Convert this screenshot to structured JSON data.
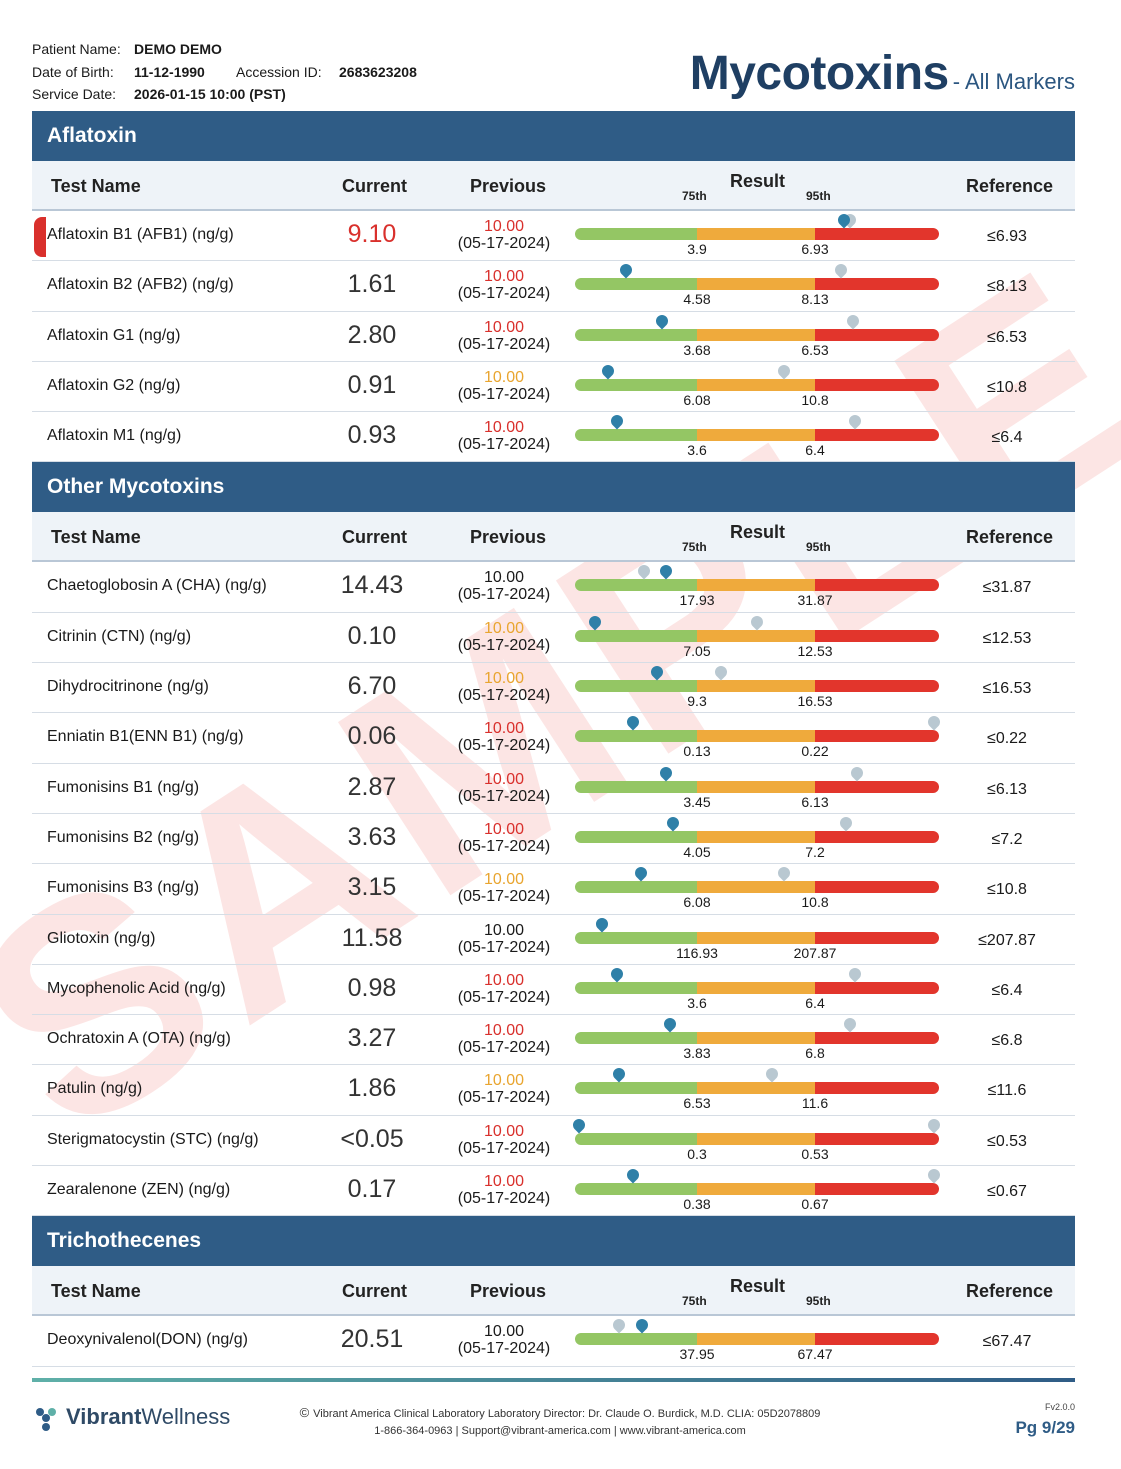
{
  "patient": {
    "name_label": "Patient Name:",
    "name": "DEMO DEMO",
    "dob_label": "Date of Birth:",
    "dob": "11-12-1990",
    "acc_label": "Accession ID:",
    "acc": "2683623208",
    "svc_label": "Service Date:",
    "svc": "2026-01-15 10:00 (PST)"
  },
  "title": {
    "main": "Mycotoxins",
    "sub": "- All Markers"
  },
  "columns": {
    "name": "Test Name",
    "current": "Current",
    "previous": "Previous",
    "result": "Result",
    "p75": "75th",
    "p95": "95th",
    "reference": "Reference"
  },
  "sections": [
    {
      "title": "Aflatoxin",
      "rows": [
        {
          "name": "Aflatoxin B1 (AFB1) (ng/g)",
          "current": "9.10",
          "prev": "10.00",
          "prev_date": "(05-17-2024)",
          "t75": "3.9",
          "t95": "6.93",
          "ref": "≤6.93",
          "cur_pos": 0.74,
          "prev_pos": 0.755,
          "flag": true,
          "prev_level": "high"
        },
        {
          "name": "Aflatoxin B2 (AFB2) (ng/g)",
          "current": "1.61",
          "prev": "10.00",
          "prev_date": "(05-17-2024)",
          "t75": "4.58",
          "t95": "8.13",
          "ref": "≤8.13",
          "cur_pos": 0.14,
          "prev_pos": 0.73,
          "prev_level": "high"
        },
        {
          "name": "Aflatoxin G1 (ng/g)",
          "current": "2.80",
          "prev": "10.00",
          "prev_date": "(05-17-2024)",
          "t75": "3.68",
          "t95": "6.53",
          "ref": "≤6.53",
          "cur_pos": 0.24,
          "prev_pos": 0.765,
          "prev_level": "high"
        },
        {
          "name": "Aflatoxin G2 (ng/g)",
          "current": "0.91",
          "prev": "10.00",
          "prev_date": "(05-17-2024)",
          "t75": "6.08",
          "t95": "10.8",
          "ref": "≤10.8",
          "cur_pos": 0.09,
          "prev_pos": 0.575,
          "prev_level": "mid"
        },
        {
          "name": "Aflatoxin M1 (ng/g)",
          "current": "0.93",
          "prev": "10.00",
          "prev_date": "(05-17-2024)",
          "t75": "3.6",
          "t95": "6.4",
          "ref": "≤6.4",
          "cur_pos": 0.115,
          "prev_pos": 0.77,
          "prev_level": "high"
        }
      ]
    },
    {
      "title": "Other Mycotoxins",
      "rows": [
        {
          "name": "Chaetoglobosin A (CHA) (ng/g)",
          "current": "14.43",
          "prev": "10.00",
          "prev_date": "(05-17-2024)",
          "t75": "17.93",
          "t95": "31.87",
          "ref": "≤31.87",
          "cur_pos": 0.25,
          "prev_pos": 0.19,
          "prev_level": "normal"
        },
        {
          "name": "Citrinin (CTN) (ng/g)",
          "current": "0.10",
          "prev": "10.00",
          "prev_date": "(05-17-2024)",
          "t75": "7.05",
          "t95": "12.53",
          "ref": "≤12.53",
          "cur_pos": 0.055,
          "prev_pos": 0.5,
          "prev_level": "mid"
        },
        {
          "name": "Dihydrocitrinone (ng/g)",
          "current": "6.70",
          "prev": "10.00",
          "prev_date": "(05-17-2024)",
          "t75": "9.3",
          "t95": "16.53",
          "ref": "≤16.53",
          "cur_pos": 0.225,
          "prev_pos": 0.4,
          "prev_level": "mid"
        },
        {
          "name": "Enniatin B1(ENN B1) (ng/g)",
          "current": "0.06",
          "prev": "10.00",
          "prev_date": "(05-17-2024)",
          "t75": "0.13",
          "t95": "0.22",
          "ref": "≤0.22",
          "cur_pos": 0.16,
          "prev_pos": 0.985,
          "prev_level": "high"
        },
        {
          "name": "Fumonisins B1 (ng/g)",
          "current": "2.87",
          "prev": "10.00",
          "prev_date": "(05-17-2024)",
          "t75": "3.45",
          "t95": "6.13",
          "ref": "≤6.13",
          "cur_pos": 0.25,
          "prev_pos": 0.775,
          "prev_level": "high"
        },
        {
          "name": "Fumonisins B2 (ng/g)",
          "current": "3.63",
          "prev": "10.00",
          "prev_date": "(05-17-2024)",
          "t75": "4.05",
          "t95": "7.2",
          "ref": "≤7.2",
          "cur_pos": 0.27,
          "prev_pos": 0.745,
          "prev_level": "high"
        },
        {
          "name": "Fumonisins B3 (ng/g)",
          "current": "3.15",
          "prev": "10.00",
          "prev_date": "(05-17-2024)",
          "t75": "6.08",
          "t95": "10.8",
          "ref": "≤10.8",
          "cur_pos": 0.18,
          "prev_pos": 0.575,
          "prev_level": "mid"
        },
        {
          "name": "Gliotoxin (ng/g)",
          "current": "11.58",
          "prev": "10.00",
          "prev_date": "(05-17-2024)",
          "t75": "116.93",
          "t95": "207.87",
          "ref": "≤207.87",
          "cur_pos": 0.075,
          "prev_pos": 0.075,
          "prev_level": "normal"
        },
        {
          "name": "Mycophenolic Acid (ng/g)",
          "current": "0.98",
          "prev": "10.00",
          "prev_date": "(05-17-2024)",
          "t75": "3.6",
          "t95": "6.4",
          "ref": "≤6.4",
          "cur_pos": 0.115,
          "prev_pos": 0.77,
          "prev_level": "high"
        },
        {
          "name": "Ochratoxin A (OTA) (ng/g)",
          "current": "3.27",
          "prev": "10.00",
          "prev_date": "(05-17-2024)",
          "t75": "3.83",
          "t95": "6.8",
          "ref": "≤6.8",
          "cur_pos": 0.26,
          "prev_pos": 0.755,
          "prev_level": "high"
        },
        {
          "name": "Patulin (ng/g)",
          "current": "1.86",
          "prev": "10.00",
          "prev_date": "(05-17-2024)",
          "t75": "6.53",
          "t95": "11.6",
          "ref": "≤11.6",
          "cur_pos": 0.12,
          "prev_pos": 0.54,
          "prev_level": "mid"
        },
        {
          "name": "Sterigmatocystin (STC) (ng/g)",
          "current": "<0.05",
          "prev": "10.00",
          "prev_date": "(05-17-2024)",
          "t75": "0.3",
          "t95": "0.53",
          "ref": "≤0.53",
          "cur_pos": 0.012,
          "prev_pos": 0.985,
          "prev_level": "high"
        },
        {
          "name": "Zearalenone (ZEN) (ng/g)",
          "current": "0.17",
          "prev": "10.00",
          "prev_date": "(05-17-2024)",
          "t75": "0.38",
          "t95": "0.67",
          "ref": "≤0.67",
          "cur_pos": 0.16,
          "prev_pos": 0.985,
          "prev_level": "high"
        }
      ]
    },
    {
      "title": "Trichothecenes",
      "rows": [
        {
          "name": "Deoxynivalenol(DON) (ng/g)",
          "current": "20.51",
          "prev": "10.00",
          "prev_date": "(05-17-2024)",
          "t75": "37.95",
          "t95": "67.47",
          "ref": "≤67.47",
          "cur_pos": 0.185,
          "prev_pos": 0.12,
          "prev_level": "normal"
        }
      ]
    }
  ],
  "watermark": "SAMPLE",
  "footer": {
    "lab": "Vibrant America Clinical Laboratory Laboratory Director: Dr. Claude O. Burdick, M.D. CLIA: 05D2078809",
    "contact": "1-866-364-0963 | Support@vibrant-america.com | www.vibrant-america.com",
    "version": "Fv2.0.0",
    "page": "Pg 9/29",
    "logo_a": "Vibrant",
    "logo_b": "Wellness",
    "copyright_symbol": "©"
  },
  "colors": {
    "accent": "#2f5c86",
    "high": "#d9302c",
    "mid": "#e9a52f",
    "green": "#94c664",
    "orange": "#efaa3c",
    "red": "#e2352c"
  }
}
